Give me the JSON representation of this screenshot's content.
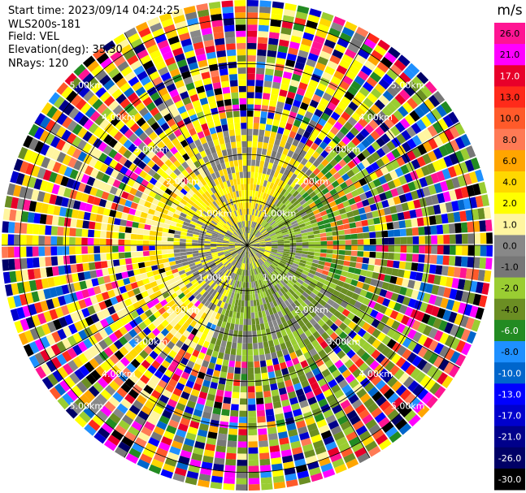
{
  "header": {
    "start_time": "Start time: 2023/09/14 04:24:25",
    "instrument": "WLS200s-181",
    "field": "Field: VEL",
    "elevation": "Elevation(deg): 35.30",
    "nrays": "NRays: 120"
  },
  "chart_data": {
    "type": "heatmap",
    "projection": "polar (PPI)",
    "n_rays": 120,
    "range_ring_labels": [
      "1.00km",
      "2.00km",
      "3.00km",
      "4.00km",
      "5.00km"
    ],
    "max_range_km": 5.4,
    "colorbar": {
      "unit": "m/s",
      "tick_labels": [
        "26.0",
        "21.0",
        "17.0",
        "13.0",
        "10.0",
        "8.0",
        "6.0",
        "4.0",
        "2.0",
        "1.0",
        "0.0",
        "-1.0",
        "-2.0",
        "-4.0",
        "-6.0",
        "-8.0",
        "-10.0",
        "-13.0",
        "-17.0",
        "-21.0",
        "-26.0",
        "-30.0"
      ],
      "colors": [
        "#ff1493",
        "#ff00ff",
        "#e8002a",
        "#ff2a1a",
        "#ff5a2a",
        "#ff7a55",
        "#ffa500",
        "#ffd700",
        "#ffff00",
        "#fff5a0",
        "#888888",
        "#777777",
        "#9acd32",
        "#6b8e23",
        "#228b22",
        "#1e90ff",
        "#0066cc",
        "#0000ff",
        "#0000cd",
        "#00008b",
        "#000066",
        "#000000"
      ]
    },
    "regions": [
      {
        "r_from_km": 0.0,
        "r_to_km": 0.6,
        "description_values": [
          "0.0",
          "-1.0",
          "2.0"
        ]
      },
      {
        "r_from_km": 0.6,
        "r_to_km": 1.6,
        "description_values": [
          "2.0",
          "-2.0",
          "0.0"
        ]
      },
      {
        "r_from_km": 1.6,
        "r_to_km": 2.6,
        "description_values": [
          "2.0",
          "4.0",
          "-2.0",
          "8.0"
        ]
      },
      {
        "r_from_km": 2.6,
        "r_to_km": 5.4,
        "description_values": [
          "mixed"
        ]
      }
    ]
  },
  "colors": {
    "grid": "#000000",
    "label": "#ffffff"
  }
}
